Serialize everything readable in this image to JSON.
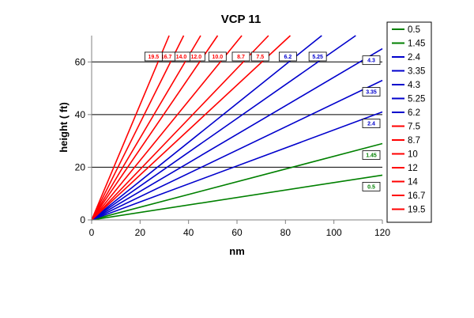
{
  "chart_data": {
    "type": "line",
    "title": "VCP 11",
    "xlabel": "nm",
    "ylabel": "height ( ft)",
    "xlim": [
      0,
      120
    ],
    "ylim": [
      0,
      70
    ],
    "x_ticks": [
      "0",
      "20",
      "40",
      "60",
      "80",
      "100",
      "120"
    ],
    "y_ticks": [
      "0",
      "20",
      "40",
      "60"
    ],
    "grid": "horizontal",
    "legend_position": "right",
    "series": [
      {
        "name": "0.5",
        "label": "0.5",
        "color": "#008000",
        "x": [
          0,
          120
        ],
        "y": [
          0,
          17
        ]
      },
      {
        "name": "1.45",
        "label": "1.45",
        "color": "#008000",
        "x": [
          0,
          120
        ],
        "y": [
          0,
          29
        ]
      },
      {
        "name": "2.4",
        "label": "2.4",
        "color": "#0000CC",
        "x": [
          0,
          120
        ],
        "y": [
          0,
          41
        ]
      },
      {
        "name": "3.35",
        "label": "3.35",
        "color": "#0000CC",
        "x": [
          0,
          120
        ],
        "y": [
          0,
          53
        ]
      },
      {
        "name": "4.3",
        "label": "4.3",
        "color": "#0000CC",
        "x": [
          0,
          120
        ],
        "y": [
          0,
          65
        ]
      },
      {
        "name": "5.25",
        "label": "5.25",
        "color": "#0000CC",
        "x": [
          0,
          109
        ],
        "y": [
          0,
          70
        ]
      },
      {
        "name": "6.2",
        "label": "6.2",
        "color": "#0000CC",
        "x": [
          0,
          95
        ],
        "y": [
          0,
          70
        ]
      },
      {
        "name": "7.5",
        "label": "7.5",
        "color": "#FF0000",
        "x": [
          0,
          82
        ],
        "y": [
          0,
          70
        ]
      },
      {
        "name": "8.7",
        "label": "8.7",
        "color": "#FF0000",
        "x": [
          0,
          73
        ],
        "y": [
          0,
          70
        ]
      },
      {
        "name": "10",
        "label": "10.0",
        "color": "#FF0000",
        "x": [
          0,
          62
        ],
        "y": [
          0,
          70
        ]
      },
      {
        "name": "12",
        "label": "12.0",
        "color": "#FF0000",
        "x": [
          0,
          52
        ],
        "y": [
          0,
          70
        ]
      },
      {
        "name": "14",
        "label": "14.0",
        "color": "#FF0000",
        "x": [
          0,
          45
        ],
        "y": [
          0,
          70
        ]
      },
      {
        "name": "16.7",
        "label": "16.7",
        "color": "#FF0000",
        "x": [
          0,
          38
        ],
        "y": [
          0,
          70
        ]
      },
      {
        "name": "19.5",
        "label": "19.5",
        "color": "#FF0000",
        "x": [
          0,
          32
        ],
        "y": [
          0,
          70
        ]
      }
    ]
  }
}
